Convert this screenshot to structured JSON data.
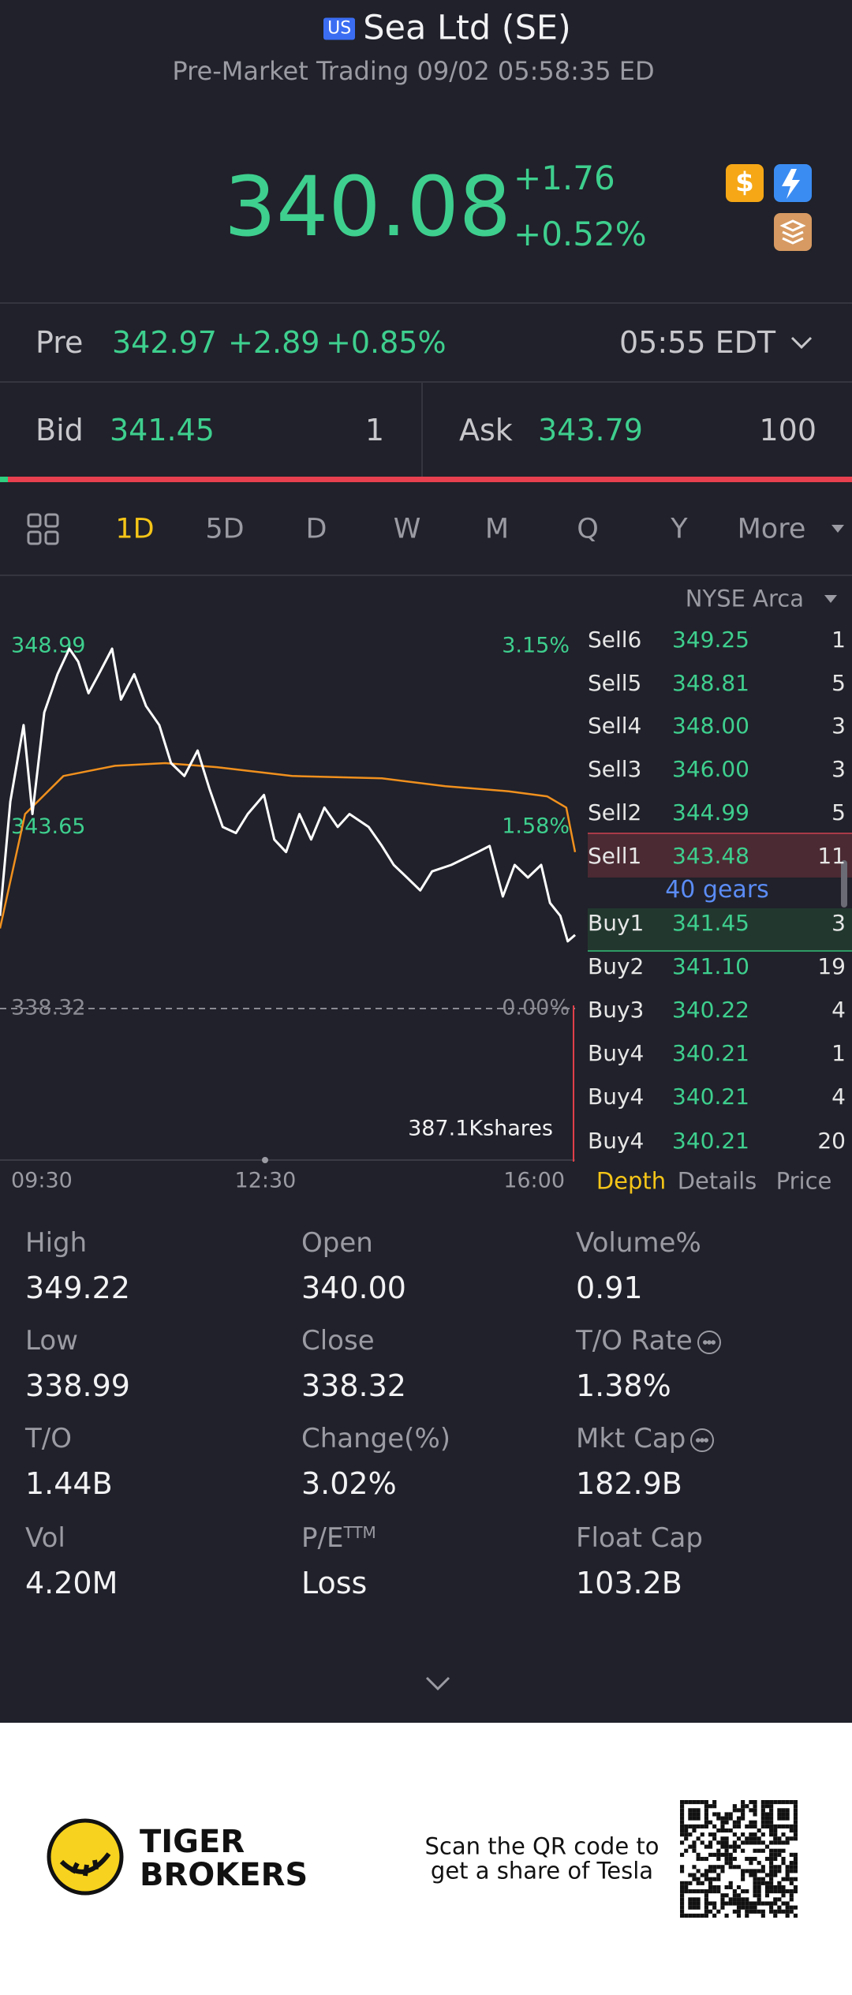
{
  "header": {
    "badge": "US",
    "title": "Sea Ltd (SE)",
    "subtitle": "Pre-Market Trading 09/02 05:58:35 ED"
  },
  "quote": {
    "price": "340.08",
    "change": "+1.76",
    "change_pct": "+0.52%"
  },
  "premarket": {
    "label": "Pre",
    "price": "342.97",
    "change": "+2.89",
    "change_pct": "+0.85%",
    "time": "05:55 EDT"
  },
  "bid": {
    "label": "Bid",
    "price": "341.45",
    "size": "1"
  },
  "ask": {
    "label": "Ask",
    "price": "343.79",
    "size": "100"
  },
  "tabs": {
    "items": [
      "1D",
      "5D",
      "D",
      "W",
      "M",
      "Q",
      "Y",
      "More"
    ],
    "active": 0
  },
  "exchange": "NYSE Arca",
  "chart_data": {
    "type": "line",
    "xlim": [
      0,
      390
    ],
    "xticks": [
      {
        "value": 0,
        "label": "09:30"
      },
      {
        "value": 180,
        "label": "12:30"
      },
      {
        "value": 390,
        "label": "16:00"
      }
    ],
    "ylim": [
      338.32,
      348.99
    ],
    "yticks": [
      338.32,
      343.65,
      348.99
    ],
    "y2lim": [
      0,
      3.15
    ],
    "y2ticks": [
      {
        "value": 0,
        "label": "0.00%"
      },
      {
        "value": 1.58,
        "label": "1.58%"
      },
      {
        "value": 3.15,
        "label": "3.15%"
      }
    ],
    "grid": false,
    "series": [
      {
        "color": "#ffffff",
        "x": [
          0,
          7,
          16,
          22,
          30,
          39,
          47,
          53,
          60,
          67,
          76,
          82,
          91,
          99,
          108,
          116,
          125,
          134,
          142,
          151,
          160,
          168,
          179,
          186,
          194,
          203,
          211,
          220,
          229,
          237,
          250,
          259,
          267,
          276,
          285,
          293,
          306,
          315,
          324,
          332,
          341,
          349,
          358,
          367,
          373,
          380,
          385,
          390
        ],
        "values": [
          341.05,
          344.42,
          346.67,
          344.05,
          347.04,
          348.17,
          348.92,
          348.54,
          347.61,
          348.17,
          348.92,
          347.42,
          348.17,
          347.23,
          346.67,
          345.55,
          345.17,
          345.92,
          344.8,
          343.67,
          343.49,
          344.05,
          344.61,
          343.3,
          342.93,
          344.05,
          343.3,
          344.24,
          343.67,
          344.05,
          343.67,
          343.11,
          342.55,
          342.18,
          341.8,
          342.36,
          342.55,
          342.74,
          342.93,
          343.11,
          341.62,
          342.55,
          342.18,
          342.55,
          341.43,
          341.05,
          340.3,
          340.49
        ]
      },
      {
        "color": "#f0901e",
        "x": [
          0,
          17,
          43,
          78,
          112,
          147,
          198,
          259,
          302,
          345,
          371,
          384,
          390
        ],
        "values": [
          340.68,
          344.05,
          345.17,
          345.47,
          345.55,
          345.43,
          345.17,
          345.1,
          344.87,
          344.72,
          344.57,
          344.24,
          342.93
        ]
      }
    ],
    "volume_label": "387.1Kshares"
  },
  "order_book": {
    "sell": [
      {
        "label": "Sell6",
        "price": "349.25",
        "size": "1"
      },
      {
        "label": "Sell5",
        "price": "348.81",
        "size": "5"
      },
      {
        "label": "Sell4",
        "price": "348.00",
        "size": "3"
      },
      {
        "label": "Sell3",
        "price": "346.00",
        "size": "3"
      },
      {
        "label": "Sell2",
        "price": "344.99",
        "size": "5"
      },
      {
        "label": "Sell1",
        "price": "343.48",
        "size": "11"
      }
    ],
    "gears": "40 gears",
    "buy": [
      {
        "label": "Buy1",
        "price": "341.45",
        "size": "3"
      },
      {
        "label": "Buy2",
        "price": "341.10",
        "size": "19"
      },
      {
        "label": "Buy3",
        "price": "340.22",
        "size": "4"
      },
      {
        "label": "Buy4",
        "price": "340.21",
        "size": "1"
      },
      {
        "label": "Buy4",
        "price": "340.21",
        "size": "4"
      },
      {
        "label": "Buy4",
        "price": "340.21",
        "size": "20"
      }
    ],
    "tabs": [
      "Depth",
      "Details",
      "Price"
    ],
    "active": 0
  },
  "stats": [
    {
      "label": "High",
      "value": "349.22"
    },
    {
      "label": "Open",
      "value": "340.00"
    },
    {
      "label": "Volume%",
      "value": "0.91"
    },
    {
      "label": "Low",
      "value": "338.99"
    },
    {
      "label": "Close",
      "value": "338.32"
    },
    {
      "label": "T/O Rate",
      "value": "1.38%",
      "info_icon": true
    },
    {
      "label": "T/O",
      "value": "1.44B"
    },
    {
      "label": "Change(%)",
      "value": "3.02%"
    },
    {
      "label": "Mkt Cap",
      "value": "182.9B",
      "info_icon": true
    },
    {
      "label": "Vol",
      "value": "4.20M"
    },
    {
      "label": "P/E",
      "sup": "TTM",
      "value": "Loss"
    },
    {
      "label": "Float Cap",
      "value": "103.2B"
    }
  ],
  "footer": {
    "brand": [
      "TIGER",
      "BROKERS"
    ],
    "promo": [
      "Scan the QR code to",
      "get a share of Tesla"
    ]
  }
}
